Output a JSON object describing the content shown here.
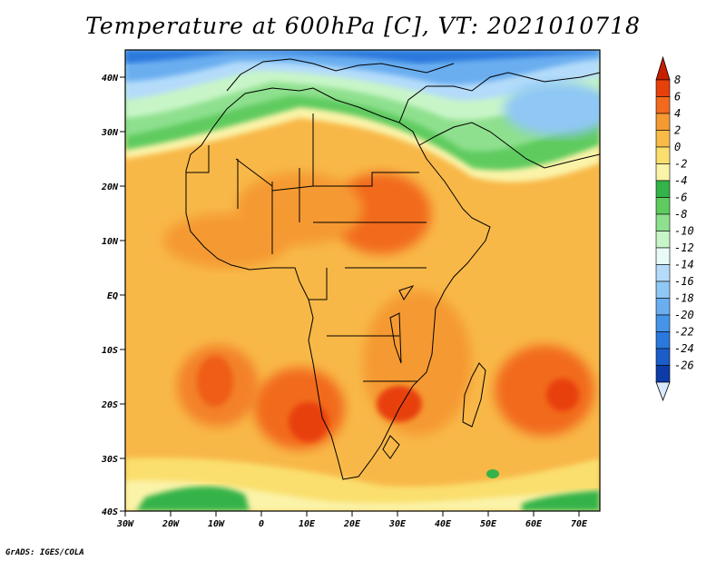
{
  "title": "Temperature at 600hPa [C], VT: 2021010718",
  "credit": "GrADS: IGES/COLA",
  "lat_labels": [
    "40N",
    "30N",
    "20N",
    "10N",
    "EQ",
    "10S",
    "20S",
    "30S",
    "40S"
  ],
  "lon_labels": [
    "30W",
    "20W",
    "10W",
    "0",
    "10E",
    "20E",
    "30E",
    "40E",
    "50E",
    "60E",
    "70E"
  ],
  "colorbar": {
    "labels": [
      "8",
      "6",
      "4",
      "2",
      "0",
      "-2",
      "-4",
      "-6",
      "-8",
      "-10",
      "-12",
      "-14",
      "-16",
      "-18",
      "-20",
      "-22",
      "-24",
      "-26"
    ],
    "colors": [
      "#c81e00",
      "#e8400a",
      "#f26a1e",
      "#f59a32",
      "#f8bb48",
      "#fadf6e",
      "#fbf3a8",
      "#34b34a",
      "#5fcb5f",
      "#8ee08e",
      "#c8f5c8",
      "#e8fbf8",
      "#b4dcfa",
      "#8fc7f5",
      "#6aaef0",
      "#4694e8",
      "#2a78dc",
      "#1b5cc8",
      "#0d3ca8",
      "#0a1e78"
    ]
  }
}
